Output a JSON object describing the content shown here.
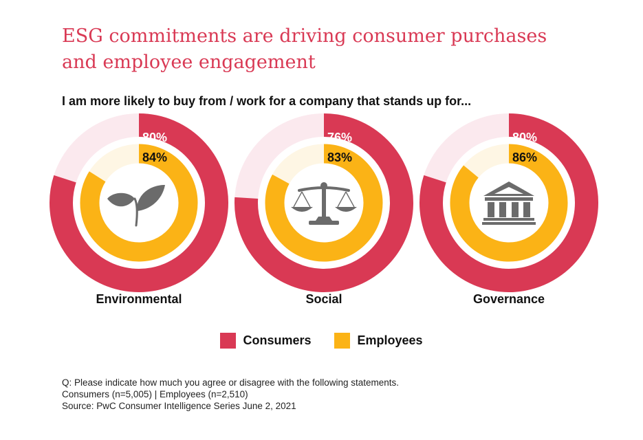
{
  "title_lines": [
    "ESG commitments are driving consumer purchases",
    "and employee engagement"
  ],
  "subtitle": "I am more likely to buy from / work for a company that stands up for...",
  "colors": {
    "consumers": "#d93954",
    "consumers_track": "#fbe9ee",
    "employees": "#fbb316",
    "employees_track": "#fef6e4",
    "icon": "#6b6b6b"
  },
  "chart_data": {
    "type": "pie",
    "categories": [
      "Environmental",
      "Social",
      "Governance"
    ],
    "series": [
      {
        "name": "Consumers",
        "values": [
          80,
          76,
          80
        ],
        "labels": [
          "80%",
          "76%",
          "80%"
        ]
      },
      {
        "name": "Employees",
        "values": [
          84,
          83,
          86
        ],
        "labels": [
          "84%",
          "83%",
          "86%"
        ]
      }
    ],
    "icons": [
      "leaf-icon",
      "scales-icon",
      "bank-icon"
    ]
  },
  "legend": {
    "consumers": "Consumers",
    "employees": "Employees"
  },
  "notes": [
    "Q: Please indicate how much you agree or disagree with the following statements.",
    "Consumers (n=5,005) | Employees (n=2,510)",
    "Source: PwC Consumer Intelligence Series June 2, 2021"
  ]
}
